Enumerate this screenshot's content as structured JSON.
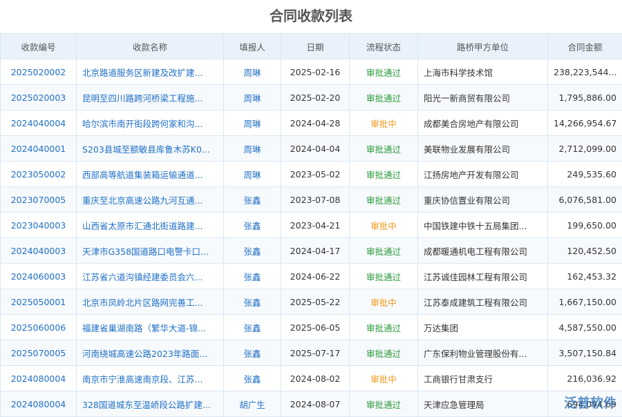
{
  "header": {
    "title": "合同收款列表"
  },
  "table": {
    "columns": [
      "收款编号",
      "收款名称",
      "填报人",
      "日期",
      "流程状态",
      "路桥甲方单位",
      "合同金额"
    ],
    "status_colors": {
      "审批通过": "#2b9a3b",
      "审批中": "#f09a1a"
    },
    "rows": [
      [
        "2025020002",
        "北京路道服务区新建及改扩建...",
        "周琳",
        "2025-02-16",
        "审批通过",
        "上海市科学技术馆",
        "238,223,544..."
      ],
      [
        "2025020003",
        "昆明至四川路跨河桥梁工程施...",
        "周琳",
        "2025-02-20",
        "审批通过",
        "阳光一新商贸有限公司",
        "1,795,886.00"
      ],
      [
        "2024040004",
        "哈尔滨市南开街段跨何家和沟...",
        "周琳",
        "2024-04-28",
        "审批中",
        "成都美合房地产有限公司",
        "14,266,954.67"
      ],
      [
        "2024040001",
        "S203县城至额敏县库鲁木苏K0...",
        "周琳",
        "2024-04-04",
        "审批通过",
        "美联物业发展有限公司",
        "2,712,099.00"
      ],
      [
        "2023050002",
        "西部高等航道集装箱运输通道...",
        "周琳",
        "2023-05-02",
        "审批通过",
        "江扬房地产开发有限公司",
        "249,535.60"
      ],
      [
        "2023070005",
        "重庆至北京高速公路九河互通...",
        "张鑫",
        "2023-07-08",
        "审批通过",
        "重庆协信置业有限公司",
        "6,076,581.00"
      ],
      [
        "2023040003",
        "山西省太原市汇通北街道路建...",
        "张鑫",
        "2023-04-21",
        "审批中",
        "中国铁建中铁十五局集团...",
        "199,650.00"
      ],
      [
        "2024040003",
        "天津市G358国道路口电警卡口...",
        "张鑫",
        "2024-04-17",
        "审批通过",
        "成都暖通机电工程有限公司",
        "120,452.50"
      ],
      [
        "2024060003",
        "江苏省六道沟镇经建委员会六...",
        "张鑫",
        "2024-06-22",
        "审批通过",
        "江苏诚佳园林工程有限公司",
        "162,453.32"
      ],
      [
        "2025050001",
        "北京市凤岭北片区路网完善工...",
        "张鑫",
        "2025-05-22",
        "审批中",
        "江苏泰成建筑工程有限公司",
        "1,667,150.00"
      ],
      [
        "2025060006",
        "福建省巢湖南路（繁华大道-锦...",
        "张鑫",
        "2025-06-05",
        "审批通过",
        "万达集团",
        "4,587,550.00"
      ],
      [
        "2025070005",
        "河南绕城高速公路2023年路面...",
        "张鑫",
        "2025-07-17",
        "审批通过",
        "广东保利物业管理股份有...",
        "3,507,150.84"
      ],
      [
        "2024080004",
        "南京市宁淮高速南京段、江苏...",
        "张鑫",
        "2024-08-02",
        "审批中",
        "工商银行甘肃支行",
        "216,036.92"
      ],
      [
        "2024080004",
        "328国道城东至温峤段公路扩建...",
        "胡广生",
        "2024-08-07",
        "审批通过",
        "天津应急管理局",
        "694,094.69"
      ]
    ]
  },
  "watermark": "泛普软件"
}
